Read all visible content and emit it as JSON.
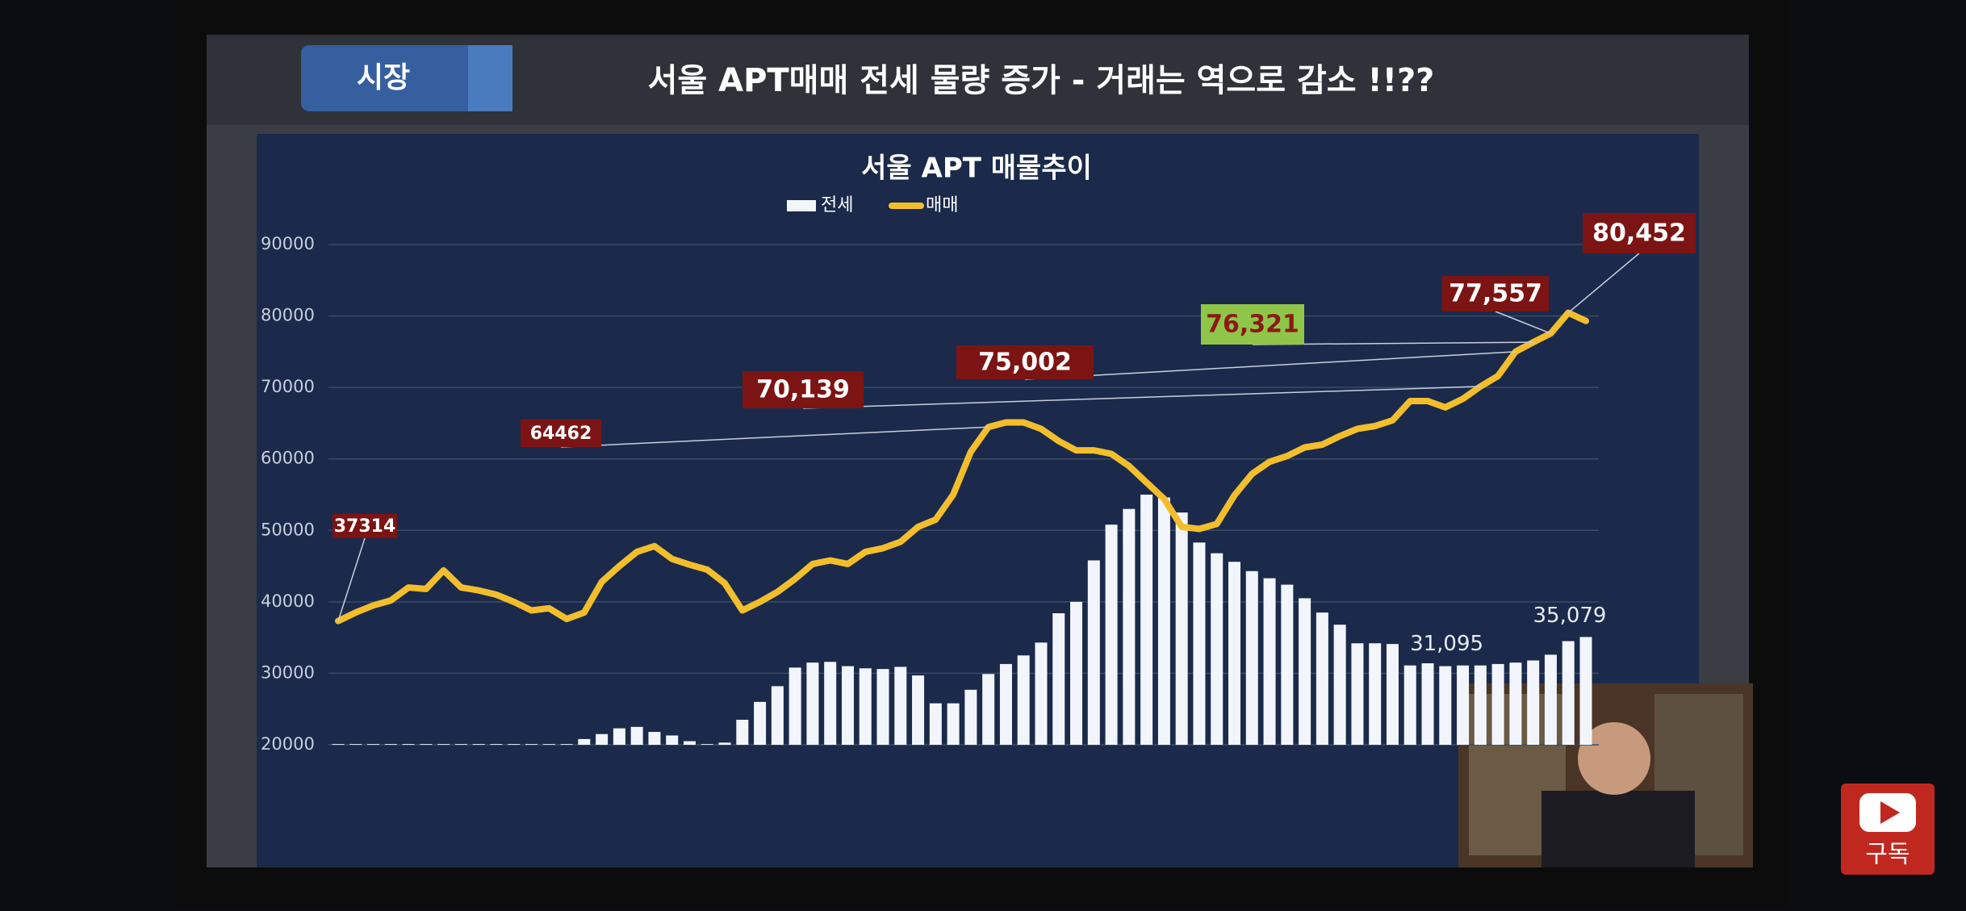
{
  "header": {
    "tab": "시장",
    "title": "서울 APT매매 전세 물량 증가  - 거래는 역으로 감소  !!??"
  },
  "subscribe": "구독",
  "chart_data": {
    "type": "bar-line",
    "title": "서울 APT 매물추이",
    "categories": [
      null,
      null,
      null,
      null,
      null,
      null,
      null,
      null,
      null,
      null,
      null,
      null,
      null,
      null,
      null,
      null,
      null,
      null,
      null,
      null,
      null,
      null,
      null,
      null,
      null,
      null,
      null,
      null,
      null,
      null,
      null,
      null,
      null,
      null,
      null,
      null,
      null,
      null,
      null,
      null,
      null,
      null,
      null,
      null,
      null,
      null,
      null,
      null,
      null,
      null,
      null,
      null,
      null,
      null,
      null,
      null,
      null,
      null,
      null,
      null,
      null,
      null,
      null,
      null,
      null,
      null,
      null,
      null,
      null,
      null,
      null,
      null
    ],
    "series": [
      {
        "name": "전세",
        "type": "bar",
        "color": "#f2f6fc",
        "values": [
          20100,
          20100,
          20100,
          20100,
          20100,
          20100,
          20100,
          20100,
          20100,
          20100,
          20100,
          20100,
          20100,
          20100,
          20800,
          21500,
          22300,
          22500,
          21800,
          21300,
          20500,
          20100,
          20300,
          23500,
          26000,
          28200,
          30800,
          31500,
          31600,
          31000,
          30700,
          30600,
          30900,
          29700,
          25800,
          25800,
          27700,
          29900,
          31300,
          32500,
          34300,
          38400,
          40000,
          45800,
          50800,
          53000,
          55000,
          54600,
          52500,
          48300,
          46800,
          45600,
          44300,
          43300,
          42400,
          40500,
          38500,
          36800,
          34200,
          34200,
          34100,
          31100,
          31400,
          31000,
          31095,
          31100,
          31300,
          31500,
          31800,
          32600,
          34500,
          35079
        ],
        "value_labels": [
          null,
          null,
          null,
          null,
          null,
          null,
          null,
          null,
          null,
          null,
          null,
          null,
          null,
          null,
          null,
          null,
          null,
          null,
          null,
          null,
          null,
          null,
          null,
          null,
          null,
          null,
          null,
          null,
          null,
          null,
          null,
          null,
          null,
          null,
          null,
          null,
          null,
          null,
          null,
          null,
          null,
          null,
          null,
          null,
          null,
          null,
          null,
          null,
          null,
          null,
          null,
          null,
          null,
          null,
          null,
          null,
          null,
          null,
          null,
          null,
          null,
          null,
          null,
          null,
          "31,095",
          null,
          null,
          null,
          null,
          null,
          null,
          "35,079"
        ]
      },
      {
        "name": "매매",
        "type": "line",
        "color": "#f3be2c",
        "values": [
          37314,
          38500,
          39500,
          40200,
          42000,
          41800,
          44400,
          42000,
          41600,
          41000,
          40000,
          38800,
          39100,
          37600,
          38500,
          42800,
          45000,
          47000,
          47800,
          46000,
          45200,
          44500,
          42600,
          38800,
          40000,
          41400,
          43200,
          45300,
          45800,
          45300,
          47000,
          47500,
          48400,
          50500,
          51500,
          55000,
          61000,
          64462,
          65100,
          65100,
          64200,
          62500,
          61200,
          61200,
          60700,
          59000,
          56700,
          54400,
          50500,
          50200,
          50900,
          54900,
          57900,
          59600,
          60400,
          61600,
          62000,
          63200,
          64200,
          64600,
          65400,
          68100,
          68100,
          67200,
          68400,
          70139,
          71600,
          75002,
          76321,
          77557,
          80452,
          79300
        ],
        "value_labels": [
          "37314",
          null,
          null,
          null,
          null,
          null,
          null,
          null,
          null,
          null,
          null,
          null,
          null,
          null,
          null,
          null,
          null,
          null,
          null,
          null,
          null,
          null,
          null,
          null,
          null,
          null,
          null,
          null,
          null,
          null,
          null,
          null,
          null,
          null,
          null,
          null,
          null,
          "64462",
          null,
          null,
          null,
          null,
          null,
          null,
          null,
          null,
          null,
          null,
          null,
          null,
          null,
          null,
          null,
          null,
          null,
          null,
          null,
          null,
          null,
          null,
          null,
          null,
          null,
          null,
          null,
          "70,139",
          null,
          "75,002",
          "76,321",
          "77,557",
          "80,452",
          null
        ]
      }
    ],
    "ylim": [
      20000,
      90000
    ],
    "yticks": [
      20000,
      30000,
      40000,
      50000,
      60000,
      70000,
      80000,
      90000
    ],
    "grid": true,
    "legend": "top"
  }
}
